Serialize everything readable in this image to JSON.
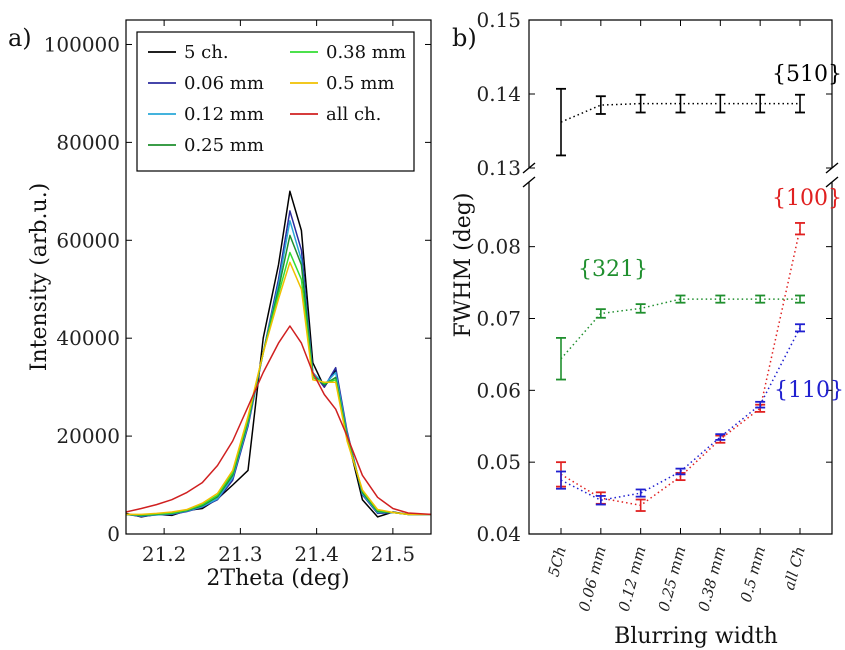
{
  "chart_data": [
    {
      "type": "line",
      "panel_label": "a)",
      "xlabel": "2Theta (deg)",
      "ylabel": "Intensity (arb.u.)",
      "xlim": [
        21.15,
        21.55
      ],
      "ylim": [
        0,
        105000
      ],
      "xticks": [
        "21.2",
        "21.3",
        "21.4",
        "21.5"
      ],
      "yticks": [
        "0",
        "20000",
        "40000",
        "60000",
        "80000",
        "100000"
      ],
      "legend": {
        "position": "top",
        "columns": 2
      },
      "x": [
        21.15,
        21.17,
        21.19,
        21.21,
        21.23,
        21.25,
        21.27,
        21.29,
        21.31,
        21.33,
        21.35,
        21.365,
        21.38,
        21.395,
        21.41,
        21.425,
        21.44,
        21.46,
        21.48,
        21.5,
        21.52,
        21.55
      ],
      "series": [
        {
          "name": "5 ch.",
          "color": "#000000",
          "values": [
            4200,
            3500,
            4000,
            3800,
            4800,
            5200,
            7200,
            10000,
            13000,
            40000,
            55000,
            70000,
            62000,
            35000,
            30000,
            33500,
            20000,
            7000,
            3500,
            4500,
            4000,
            4000
          ]
        },
        {
          "name": "0.06 mm",
          "color": "#2b2b9e",
          "values": [
            4000,
            3600,
            3900,
            4000,
            4600,
            5500,
            7000,
            11000,
            22000,
            37000,
            52000,
            66000,
            58000,
            33000,
            30000,
            34000,
            21000,
            8000,
            4200,
            4400,
            4000,
            4000
          ]
        },
        {
          "name": "0.12 mm",
          "color": "#29a8d8",
          "values": [
            4000,
            3700,
            3900,
            4100,
            4700,
            5600,
            7200,
            11500,
            22500,
            37000,
            51000,
            64000,
            56000,
            33000,
            30500,
            33000,
            20500,
            8200,
            4400,
            4400,
            4000,
            4000
          ]
        },
        {
          "name": "0.25 mm",
          "color": "#1f8f2e",
          "values": [
            4000,
            3800,
            4000,
            4200,
            4800,
            5800,
            7600,
            12000,
            23000,
            37000,
            50000,
            61000,
            55000,
            32500,
            30500,
            32000,
            20000,
            8500,
            4600,
            4400,
            4000,
            4000
          ]
        },
        {
          "name": "0.38 mm",
          "color": "#33dd33",
          "values": [
            4000,
            3900,
            4100,
            4300,
            4900,
            6000,
            7900,
            12500,
            23500,
            37000,
            49000,
            57500,
            52000,
            32000,
            30800,
            31500,
            19500,
            8800,
            4800,
            4400,
            4000,
            4000
          ]
        },
        {
          "name": "0.5 mm",
          "color": "#f0c000",
          "values": [
            4000,
            4000,
            4200,
            4500,
            5000,
            6300,
            8300,
            13000,
            24000,
            37000,
            48000,
            55500,
            50000,
            31500,
            31000,
            31000,
            19000,
            9000,
            5000,
            4400,
            4000,
            4000
          ]
        },
        {
          "name": "all ch.",
          "color": "#d02020",
          "values": [
            4500,
            5200,
            6000,
            7000,
            8500,
            10500,
            14000,
            19000,
            26000,
            33000,
            39000,
            42500,
            39000,
            33000,
            28500,
            25500,
            20000,
            12000,
            7500,
            5200,
            4300,
            4000
          ]
        }
      ]
    },
    {
      "type": "line",
      "panel_label": "b)",
      "xlabel": "Blurring width",
      "ylabel": "FWHM (deg)",
      "categories": [
        "5Ch",
        "0.06 mm",
        "0.12 mm",
        "0.25 mm",
        "0.38 mm",
        "0.5 mm",
        "all Ch"
      ],
      "ylim_top": [
        0.13,
        0.15
      ],
      "ylim_bottom": [
        0.04,
        0.089
      ],
      "yticks_top": [
        "0.13",
        "0.14",
        "0.15"
      ],
      "yticks_bottom": [
        "0.04",
        "0.05",
        "0.06",
        "0.07",
        "0.08"
      ],
      "broken_axis": true,
      "series": [
        {
          "name": "{510}",
          "color": "#000000",
          "values": [
            0.1362,
            0.1385,
            0.1387,
            0.1387,
            0.1387,
            0.1387,
            0.1387
          ],
          "err": [
            0.0045,
            0.0012,
            0.0012,
            0.0012,
            0.0012,
            0.0012,
            0.0012
          ]
        },
        {
          "name": "{321}",
          "color": "#1f8f2e",
          "values": [
            0.0644,
            0.0707,
            0.0714,
            0.0727,
            0.0727,
            0.0727,
            0.0727
          ],
          "err": [
            0.0029,
            0.0006,
            0.0006,
            0.0005,
            0.0005,
            0.0005,
            0.0005
          ]
        },
        {
          "name": "{100}",
          "color": "#e02020",
          "values": [
            0.0483,
            0.045,
            0.044,
            0.048,
            0.0532,
            0.0575,
            0.0825
          ],
          "err": [
            0.0017,
            0.0008,
            0.0008,
            0.0005,
            0.0005,
            0.0005,
            0.0008
          ]
        },
        {
          "name": "{110}",
          "color": "#2020d0",
          "values": [
            0.0475,
            0.0447,
            0.0457,
            0.0487,
            0.0535,
            0.058,
            0.0687
          ],
          "err": [
            0.0012,
            0.0006,
            0.0005,
            0.0004,
            0.0004,
            0.0004,
            0.0005
          ]
        }
      ],
      "annotations": [
        "{510}",
        "{321}",
        "{100}",
        "{110}"
      ]
    }
  ]
}
